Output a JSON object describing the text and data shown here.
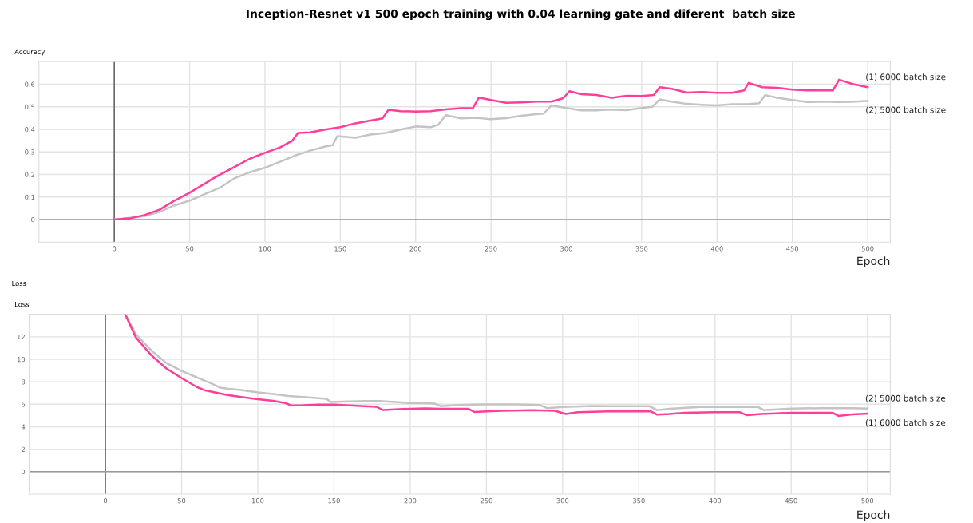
{
  "chart_data": [
    {
      "type": "line",
      "title": "Inception-Resnet v1 500 epoch training with 0.04 learning gate and diferent  batch size",
      "subtitle": "Accuracy",
      "xlabel": "Epoch",
      "xlim": [
        -50,
        515
      ],
      "xticks": [
        0,
        50,
        100,
        150,
        200,
        250,
        300,
        350,
        400,
        450,
        500
      ],
      "ylim": [
        -0.1,
        0.7
      ],
      "yticks": [
        0,
        0.1,
        0.2,
        0.3,
        0.4,
        0.5,
        0.6
      ],
      "grid": true,
      "legend": false,
      "ref_lines": [
        {
          "axis": "x",
          "value": 0,
          "color": "#555555"
        },
        {
          "axis": "y",
          "value": 0,
          "color": "#999999"
        }
      ],
      "series": [
        {
          "name": "(1) 6000 batch size",
          "color": "#ff3d9a",
          "x": [
            0,
            10,
            20,
            30,
            40,
            50,
            60,
            65,
            70,
            80,
            90,
            100,
            110,
            118,
            122,
            130,
            140,
            150,
            160,
            170,
            178,
            182,
            190,
            200,
            210,
            220,
            230,
            238,
            242,
            250,
            260,
            270,
            280,
            290,
            298,
            302,
            310,
            320,
            330,
            340,
            350,
            358,
            362,
            370,
            380,
            390,
            400,
            410,
            418,
            421,
            430,
            440,
            450,
            460,
            470,
            477,
            481,
            490,
            500
          ],
          "values": [
            0,
            0.005,
            0.02,
            0.044,
            0.084,
            0.119,
            0.159,
            0.18,
            0.199,
            0.234,
            0.27,
            0.296,
            0.32,
            0.349,
            0.384,
            0.387,
            0.399,
            0.41,
            0.427,
            0.439,
            0.449,
            0.487,
            0.481,
            0.479,
            0.481,
            0.489,
            0.494,
            0.494,
            0.541,
            0.53,
            0.518,
            0.52,
            0.523,
            0.523,
            0.538,
            0.569,
            0.556,
            0.552,
            0.54,
            0.549,
            0.548,
            0.552,
            0.587,
            0.58,
            0.563,
            0.566,
            0.562,
            0.562,
            0.573,
            0.606,
            0.587,
            0.584,
            0.576,
            0.573,
            0.573,
            0.573,
            0.62,
            0.601,
            0.587
          ]
        },
        {
          "name": "(2) 5000 batch size",
          "color": "#c4c4c4",
          "x": [
            0,
            20,
            30,
            40,
            50,
            60,
            70,
            80,
            90,
            100,
            110,
            120,
            130,
            140,
            145,
            148,
            160,
            170,
            180,
            190,
            200,
            210,
            215,
            220,
            230,
            240,
            250,
            260,
            270,
            280,
            285,
            290,
            300,
            310,
            320,
            330,
            340,
            350,
            357,
            362,
            370,
            380,
            390,
            400,
            410,
            420,
            428,
            432,
            440,
            450,
            460,
            470,
            480,
            490,
            500
          ],
          "values": [
            0,
            0.015,
            0.034,
            0.063,
            0.084,
            0.113,
            0.141,
            0.184,
            0.21,
            0.23,
            0.256,
            0.284,
            0.306,
            0.324,
            0.33,
            0.37,
            0.363,
            0.377,
            0.384,
            0.399,
            0.413,
            0.41,
            0.42,
            0.463,
            0.449,
            0.451,
            0.445,
            0.45,
            0.46,
            0.467,
            0.47,
            0.506,
            0.495,
            0.484,
            0.484,
            0.488,
            0.485,
            0.495,
            0.5,
            0.533,
            0.523,
            0.513,
            0.509,
            0.506,
            0.512,
            0.512,
            0.516,
            0.552,
            0.54,
            0.53,
            0.521,
            0.523,
            0.521,
            0.522,
            0.526
          ]
        }
      ]
    },
    {
      "type": "line",
      "title": "Loss",
      "subtitle": "Loss",
      "xlabel": "Epoch",
      "xlim": [
        -50,
        515
      ],
      "xticks": [
        0,
        50,
        100,
        150,
        200,
        250,
        300,
        350,
        400,
        450,
        500
      ],
      "ylim": [
        -2,
        14
      ],
      "yticks": [
        0,
        2,
        4,
        6,
        8,
        10,
        12
      ],
      "grid": true,
      "legend": false,
      "ref_lines": [
        {
          "axis": "x",
          "value": 0,
          "color": "#555555"
        },
        {
          "axis": "y",
          "value": 0,
          "color": "#999999"
        }
      ],
      "series": [
        {
          "name": "(1) 6000 batch size",
          "color": "#ff3d9a",
          "x": [
            13,
            20,
            30,
            40,
            50,
            60,
            65,
            70,
            80,
            90,
            100,
            110,
            118,
            122,
            130,
            140,
            150,
            160,
            170,
            178,
            182,
            190,
            200,
            210,
            220,
            238,
            242,
            250,
            260,
            280,
            295,
            302,
            310,
            330,
            350,
            358,
            362,
            370,
            380,
            400,
            416,
            421,
            430,
            450,
            470,
            477,
            481,
            490,
            500
          ],
          "values": [
            14,
            11.94,
            10.38,
            9.18,
            8.33,
            7.53,
            7.25,
            7.1,
            6.82,
            6.62,
            6.45,
            6.31,
            6.11,
            5.89,
            5.91,
            5.97,
            5.97,
            5.89,
            5.83,
            5.77,
            5.49,
            5.54,
            5.6,
            5.63,
            5.6,
            5.6,
            5.32,
            5.36,
            5.42,
            5.48,
            5.42,
            5.13,
            5.3,
            5.36,
            5.36,
            5.36,
            5.08,
            5.13,
            5.25,
            5.3,
            5.3,
            5.02,
            5.13,
            5.25,
            5.25,
            5.25,
            4.96,
            5.1,
            5.16
          ]
        },
        {
          "name": "(2) 5000 batch size",
          "color": "#c4c4c4",
          "x": [
            13,
            20,
            30,
            40,
            50,
            60,
            70,
            75,
            80,
            90,
            100,
            110,
            120,
            130,
            140,
            145,
            148,
            160,
            170,
            180,
            190,
            200,
            210,
            216,
            220,
            230,
            240,
            250,
            270,
            285,
            290,
            300,
            320,
            340,
            357,
            362,
            370,
            390,
            410,
            428,
            432,
            450,
            470,
            490,
            500
          ],
          "values": [
            14,
            12.23,
            10.8,
            9.67,
            8.96,
            8.39,
            7.82,
            7.48,
            7.39,
            7.25,
            7.05,
            6.91,
            6.74,
            6.65,
            6.54,
            6.48,
            6.2,
            6.26,
            6.28,
            6.28,
            6.2,
            6.11,
            6.11,
            6.06,
            5.83,
            5.91,
            5.97,
            5.99,
            5.99,
            5.93,
            5.65,
            5.76,
            5.84,
            5.82,
            5.82,
            5.48,
            5.59,
            5.76,
            5.76,
            5.76,
            5.48,
            5.62,
            5.65,
            5.65,
            5.62
          ]
        }
      ]
    }
  ]
}
